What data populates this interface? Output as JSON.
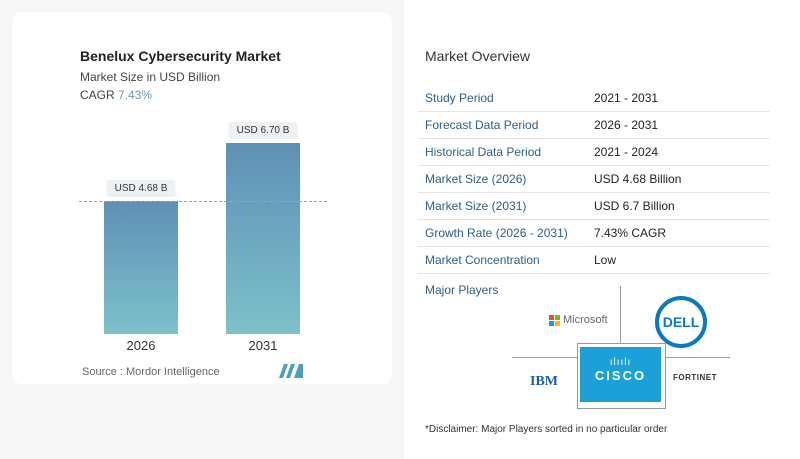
{
  "chart_data": {
    "type": "bar",
    "title": "Benelux Cybersecurity Market",
    "subtitle": "Market Size in USD Billion",
    "cagr_label": "CAGR",
    "cagr_value": "7.43%",
    "categories": [
      "2026",
      "2031"
    ],
    "values": [
      4.68,
      6.7
    ],
    "data_labels": [
      "USD 4.68 B",
      "USD 6.70 B"
    ],
    "bar_colors": [
      "#5f90b6",
      "#7cc1c9"
    ],
    "source": "Source :  Mordor Intelligence"
  },
  "overview": {
    "title": "Market Overview",
    "rows": [
      {
        "label": "Study Period",
        "value": "2021 - 2031"
      },
      {
        "label": "Forecast Data Period",
        "value": "2026 - 2031"
      },
      {
        "label": "Historical Data Period",
        "value": "2021 - 2024"
      },
      {
        "label": "Market Size (2026)",
        "value": "USD 4.68 Billion"
      },
      {
        "label": "Market Size (2031)",
        "value": "USD 6.7 Billion"
      },
      {
        "label": "Growth Rate (2026 - 2031)",
        "value": "7.43% CAGR"
      },
      {
        "label": "Market Concentration",
        "value": "Low"
      }
    ],
    "major_players_label": "Major Players",
    "players": [
      "Microsoft",
      "DELL",
      "IBM",
      "CISCO",
      "FORTINET"
    ],
    "disclaimer": "*Disclaimer: Major Players sorted in no particular order"
  }
}
